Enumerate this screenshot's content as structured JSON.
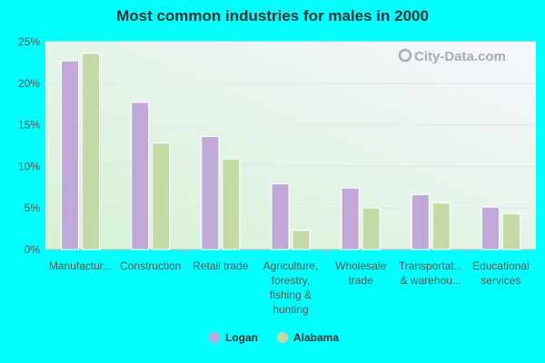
{
  "chart_data": {
    "type": "bar",
    "title": "Most common industries for males in 2000",
    "categories": [
      [
        "Manufactur..."
      ],
      [
        "Construction"
      ],
      [
        "Retail trade"
      ],
      [
        "Agriculture,",
        "forestry,",
        "fishing &",
        "hunting"
      ],
      [
        "Wholesale",
        "trade"
      ],
      [
        "Transportat...",
        "& warehou..."
      ],
      [
        "Educational",
        "services"
      ]
    ],
    "series": [
      {
        "name": "Logan",
        "color": "#c0a8d8",
        "values": [
          22.7,
          17.7,
          13.6,
          7.9,
          7.4,
          6.6,
          5.1
        ]
      },
      {
        "name": "Alabama",
        "color": "#c5d9a6",
        "values": [
          23.6,
          12.8,
          10.9,
          2.3,
          5.0,
          5.6,
          4.3
        ]
      }
    ],
    "ylim": [
      0,
      25
    ],
    "yticks": [
      "0%",
      "5%",
      "10%",
      "15%",
      "20%",
      "25%"
    ],
    "grid": true,
    "legend": "bottom",
    "watermark": "City-Data.com"
  }
}
